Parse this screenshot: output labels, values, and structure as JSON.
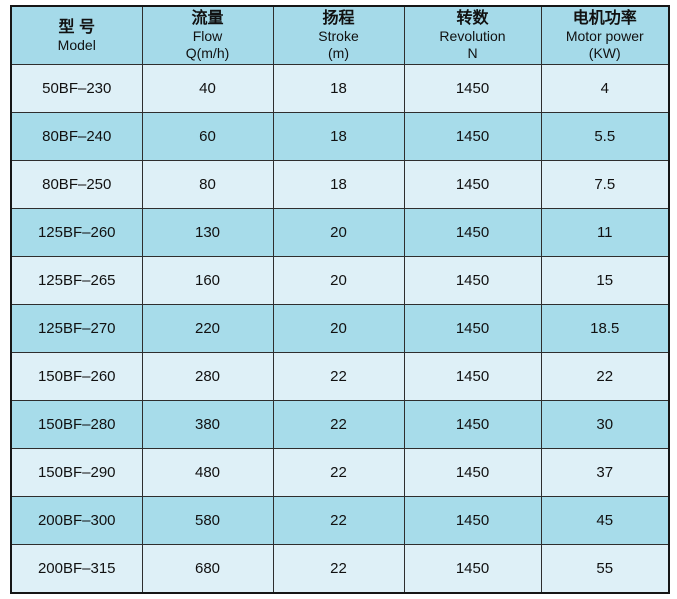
{
  "page": {
    "background": "#ffffff",
    "description_title": "Pump model specification table"
  },
  "colors": {
    "header_bg": "#a5dae9",
    "row_dark": "#a7dcea",
    "row_light": "#def0f7",
    "border_outer": "#161616",
    "border_inner": "#2e2e2e",
    "text": "#111111",
    "page_bg": "#ffffff"
  },
  "table": {
    "columns": [
      {
        "key": "model",
        "lines": [
          "型 号",
          "Model"
        ]
      },
      {
        "key": "flow",
        "lines": [
          "流量",
          "Flow",
          "Q(m/h)"
        ]
      },
      {
        "key": "stroke",
        "lines": [
          "扬程",
          "Stroke",
          "(m)"
        ]
      },
      {
        "key": "revolution",
        "lines": [
          "转数",
          "Revolution",
          "N"
        ]
      },
      {
        "key": "motor-power",
        "lines": [
          "电机功率",
          "Motor power",
          "(KW)"
        ]
      }
    ],
    "rows": [
      {
        "cells": [
          "50BF–230",
          "40",
          "18",
          "1450",
          "4"
        ]
      },
      {
        "cells": [
          "80BF–240",
          "60",
          "18",
          "1450",
          "5.5"
        ]
      },
      {
        "cells": [
          "80BF–250",
          "80",
          "18",
          "1450",
          "7.5"
        ]
      },
      {
        "cells": [
          "125BF–260",
          "130",
          "20",
          "1450",
          "11"
        ]
      },
      {
        "cells": [
          "125BF–265",
          "160",
          "20",
          "1450",
          "15"
        ]
      },
      {
        "cells": [
          "125BF–270",
          "220",
          "20",
          "1450",
          "18.5"
        ]
      },
      {
        "cells": [
          "150BF–260",
          "280",
          "22",
          "1450",
          "22"
        ]
      },
      {
        "cells": [
          "150BF–280",
          "380",
          "22",
          "1450",
          "30"
        ]
      },
      {
        "cells": [
          "150BF–290",
          "480",
          "22",
          "1450",
          "37"
        ]
      },
      {
        "cells": [
          "200BF–300",
          "580",
          "22",
          "1450",
          "45"
        ]
      },
      {
        "cells": [
          "200BF–315",
          "680",
          "22",
          "1450",
          "55"
        ]
      }
    ]
  }
}
